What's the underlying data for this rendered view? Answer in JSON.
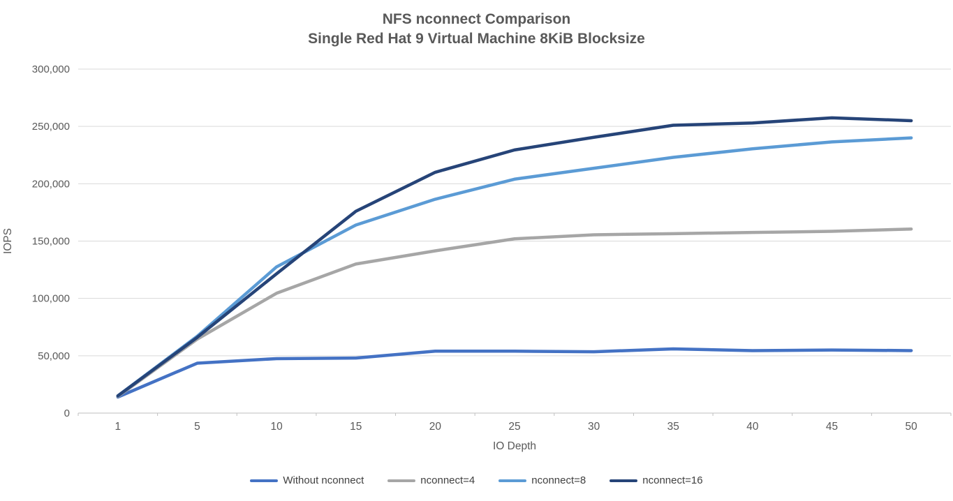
{
  "chart_data": {
    "type": "line",
    "title": "NFS nconnect Comparison",
    "subtitle": "Single Red Hat 9 Virtual Machine 8KiB Blocksize",
    "xlabel": "IO Depth",
    "ylabel": "IOPS",
    "x": [
      "1",
      "5",
      "10",
      "15",
      "20",
      "25",
      "30",
      "35",
      "40",
      "45",
      "50"
    ],
    "ylim": [
      0,
      300000
    ],
    "yticks": [
      0,
      50000,
      100000,
      150000,
      200000,
      250000,
      300000
    ],
    "ytick_labels": [
      "0",
      "50,000",
      "100,000",
      "150,000",
      "200,000",
      "250,000",
      "300,000"
    ],
    "grid": "horizontal-only",
    "legend_position": "bottom-center",
    "series": [
      {
        "name": "Without nconnect",
        "color": "#4472C4",
        "values": [
          14000,
          43500,
          47500,
          48000,
          54000,
          54000,
          53500,
          56000,
          54500,
          55000,
          54500
        ]
      },
      {
        "name": "nconnect=4",
        "color": "#A6A6A6",
        "values": [
          14500,
          64500,
          104500,
          130000,
          141500,
          152000,
          155500,
          156500,
          157500,
          158500,
          160500
        ]
      },
      {
        "name": "nconnect=8",
        "color": "#5B9BD5",
        "values": [
          15000,
          67000,
          127500,
          164000,
          186500,
          204000,
          213500,
          223000,
          230500,
          236500,
          240000
        ]
      },
      {
        "name": "nconnect=16",
        "color": "#264478",
        "values": [
          15000,
          66000,
          121500,
          176000,
          210000,
          229500,
          240500,
          251000,
          253000,
          257500,
          255000
        ]
      }
    ]
  },
  "colors": {
    "background": "#FFFFFF",
    "gridline": "#D9D9D9",
    "axis_line": "#BFBFBF",
    "tick_mark": "#BFBFBF",
    "title_text": "#595959",
    "axis_text": "#595959",
    "legend_text": "#404040"
  }
}
